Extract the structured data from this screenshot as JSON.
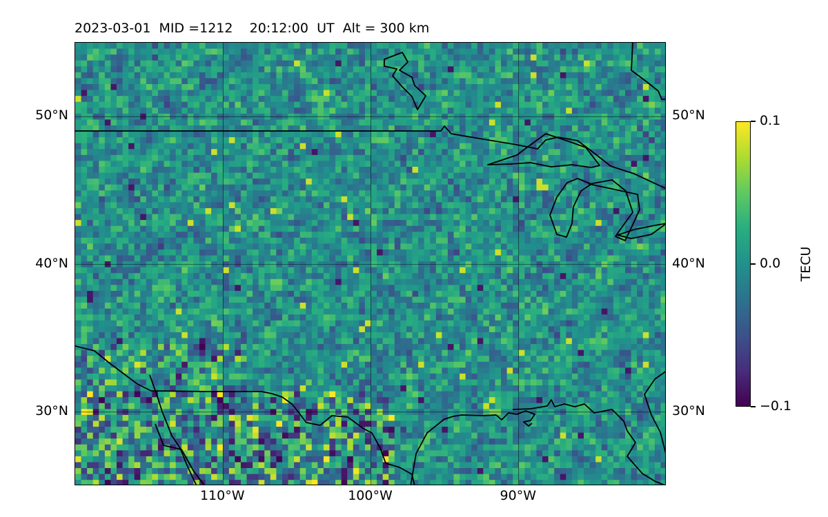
{
  "title": {
    "date": "2023-03-01",
    "mid_label": "MID =1212",
    "time": "20:12:00",
    "time_unit": "UT",
    "altitude": "Alt = 300 km"
  },
  "map": {
    "projection": "equirectangular",
    "lon_range": [
      -120,
      -80
    ],
    "lat_range": [
      25,
      55
    ],
    "lat_ticks": [
      {
        "value": 50,
        "label": "50°N"
      },
      {
        "value": 40,
        "label": "40°N"
      },
      {
        "value": 30,
        "label": "30°N"
      }
    ],
    "lon_ticks": [
      {
        "value": -110,
        "label": "110°W"
      },
      {
        "value": -100,
        "label": "100°W"
      },
      {
        "value": -90,
        "label": "90°W"
      }
    ],
    "gridlines": true,
    "field": "Differential TEC (TECU), noisy pixel field, roughly 0 on average; stronger positive and negative values near the Mexican border and Gulf region"
  },
  "colorbar": {
    "label": "TECU",
    "colormap": "viridis",
    "min": -0.1,
    "max": 0.1,
    "ticks": [
      {
        "value": 0.1,
        "label": "0.1"
      },
      {
        "value": 0.0,
        "label": "0.0"
      },
      {
        "value": -0.1,
        "label": "−0.1"
      }
    ]
  }
}
